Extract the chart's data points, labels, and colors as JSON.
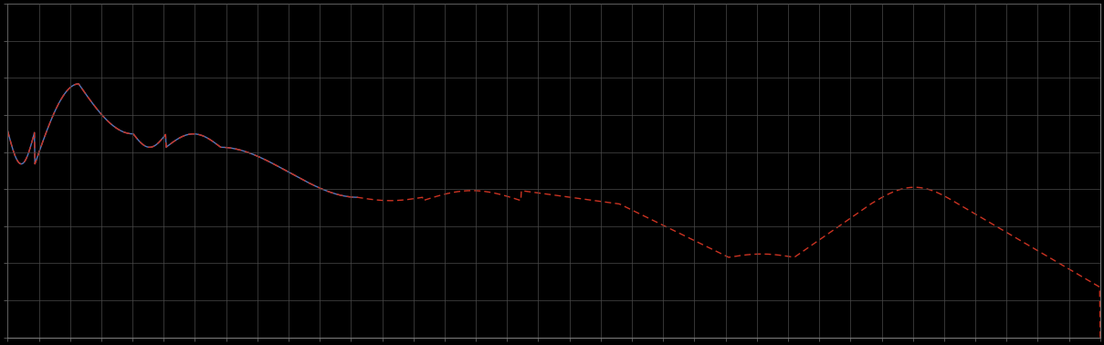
{
  "background_color": "#000000",
  "plot_bg_color": "#000000",
  "grid_color": "#4a4a4a",
  "line1_color": "#5577bb",
  "line2_color": "#cc3322",
  "xlim": [
    0,
    1
  ],
  "ylim": [
    0,
    1
  ],
  "figsize": [
    12.09,
    3.78
  ],
  "dpi": 100,
  "spine_color": "#777777",
  "tick_color": "#777777",
  "grid_nx": 35,
  "grid_ny": 9
}
